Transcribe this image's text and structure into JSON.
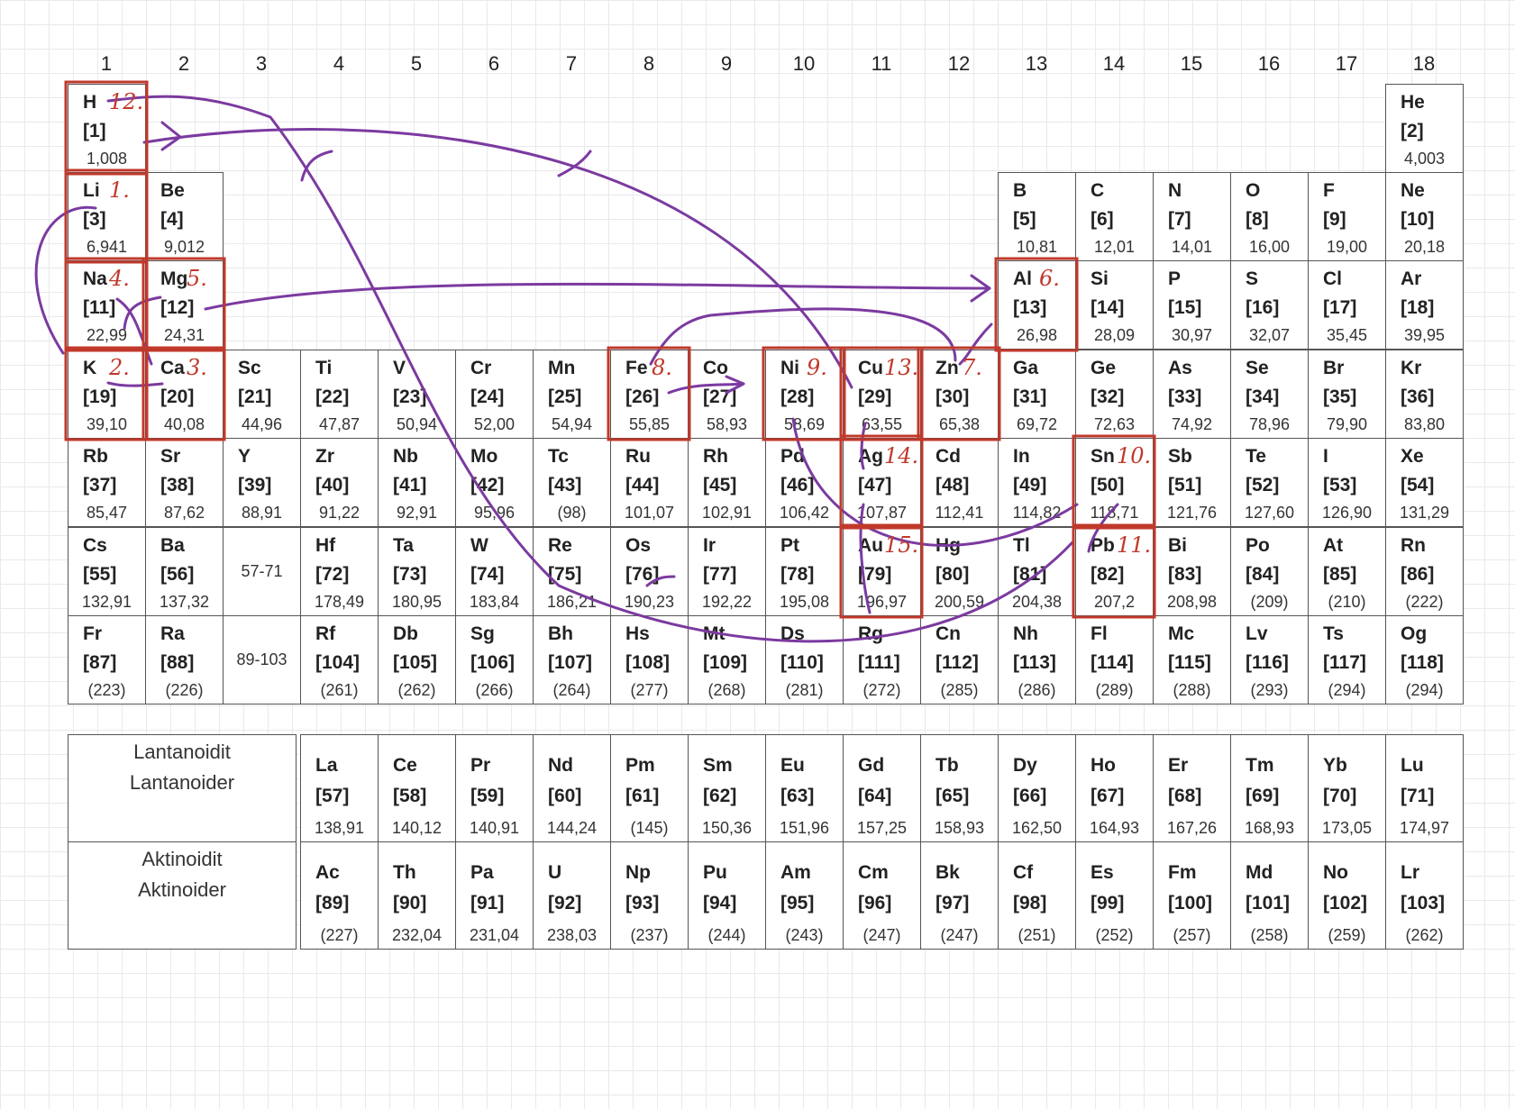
{
  "groups": [
    "1",
    "2",
    "3",
    "4",
    "5",
    "6",
    "7",
    "8",
    "9",
    "10",
    "11",
    "12",
    "13",
    "14",
    "15",
    "16",
    "17",
    "18"
  ],
  "elements": [
    {
      "s": "H",
      "n": "[1]",
      "m": "1,008",
      "p": 1,
      "g": 1
    },
    {
      "s": "He",
      "n": "[2]",
      "m": "4,003",
      "p": 1,
      "g": 18
    },
    {
      "s": "Li",
      "n": "[3]",
      "m": "6,941",
      "p": 2,
      "g": 1
    },
    {
      "s": "Be",
      "n": "[4]",
      "m": "9,012",
      "p": 2,
      "g": 2
    },
    {
      "s": "B",
      "n": "[5]",
      "m": "10,81",
      "p": 2,
      "g": 13
    },
    {
      "s": "C",
      "n": "[6]",
      "m": "12,01",
      "p": 2,
      "g": 14
    },
    {
      "s": "N",
      "n": "[7]",
      "m": "14,01",
      "p": 2,
      "g": 15
    },
    {
      "s": "O",
      "n": "[8]",
      "m": "16,00",
      "p": 2,
      "g": 16
    },
    {
      "s": "F",
      "n": "[9]",
      "m": "19,00",
      "p": 2,
      "g": 17
    },
    {
      "s": "Ne",
      "n": "[10]",
      "m": "20,18",
      "p": 2,
      "g": 18
    },
    {
      "s": "Na",
      "n": "[11]",
      "m": "22,99",
      "p": 3,
      "g": 1
    },
    {
      "s": "Mg",
      "n": "[12]",
      "m": "24,31",
      "p": 3,
      "g": 2
    },
    {
      "s": "Al",
      "n": "[13]",
      "m": "26,98",
      "p": 3,
      "g": 13
    },
    {
      "s": "Si",
      "n": "[14]",
      "m": "28,09",
      "p": 3,
      "g": 14
    },
    {
      "s": "P",
      "n": "[15]",
      "m": "30,97",
      "p": 3,
      "g": 15
    },
    {
      "s": "S",
      "n": "[16]",
      "m": "32,07",
      "p": 3,
      "g": 16
    },
    {
      "s": "Cl",
      "n": "[17]",
      "m": "35,45",
      "p": 3,
      "g": 17
    },
    {
      "s": "Ar",
      "n": "[18]",
      "m": "39,95",
      "p": 3,
      "g": 18
    },
    {
      "s": "K",
      "n": "[19]",
      "m": "39,10",
      "p": 4,
      "g": 1
    },
    {
      "s": "Ca",
      "n": "[20]",
      "m": "40,08",
      "p": 4,
      "g": 2
    },
    {
      "s": "Sc",
      "n": "[21]",
      "m": "44,96",
      "p": 4,
      "g": 3
    },
    {
      "s": "Ti",
      "n": "[22]",
      "m": "47,87",
      "p": 4,
      "g": 4
    },
    {
      "s": "V",
      "n": "[23]",
      "m": "50,94",
      "p": 4,
      "g": 5
    },
    {
      "s": "Cr",
      "n": "[24]",
      "m": "52,00",
      "p": 4,
      "g": 6
    },
    {
      "s": "Mn",
      "n": "[25]",
      "m": "54,94",
      "p": 4,
      "g": 7
    },
    {
      "s": "Fe",
      "n": "[26]",
      "m": "55,85",
      "p": 4,
      "g": 8
    },
    {
      "s": "Co",
      "n": "[27]",
      "m": "58,93",
      "p": 4,
      "g": 9
    },
    {
      "s": "Ni",
      "n": "[28]",
      "m": "58,69",
      "p": 4,
      "g": 10
    },
    {
      "s": "Cu",
      "n": "[29]",
      "m": "63,55",
      "p": 4,
      "g": 11
    },
    {
      "s": "Zn",
      "n": "[30]",
      "m": "65,38",
      "p": 4,
      "g": 12
    },
    {
      "s": "Ga",
      "n": "[31]",
      "m": "69,72",
      "p": 4,
      "g": 13
    },
    {
      "s": "Ge",
      "n": "[32]",
      "m": "72,63",
      "p": 4,
      "g": 14
    },
    {
      "s": "As",
      "n": "[33]",
      "m": "74,92",
      "p": 4,
      "g": 15
    },
    {
      "s": "Se",
      "n": "[34]",
      "m": "78,96",
      "p": 4,
      "g": 16
    },
    {
      "s": "Br",
      "n": "[35]",
      "m": "79,90",
      "p": 4,
      "g": 17
    },
    {
      "s": "Kr",
      "n": "[36]",
      "m": "83,80",
      "p": 4,
      "g": 18
    },
    {
      "s": "Rb",
      "n": "[37]",
      "m": "85,47",
      "p": 5,
      "g": 1
    },
    {
      "s": "Sr",
      "n": "[38]",
      "m": "87,62",
      "p": 5,
      "g": 2
    },
    {
      "s": "Y",
      "n": "[39]",
      "m": "88,91",
      "p": 5,
      "g": 3
    },
    {
      "s": "Zr",
      "n": "[40]",
      "m": "91,22",
      "p": 5,
      "g": 4
    },
    {
      "s": "Nb",
      "n": "[41]",
      "m": "92,91",
      "p": 5,
      "g": 5
    },
    {
      "s": "Mo",
      "n": "[42]",
      "m": "95,96",
      "p": 5,
      "g": 6
    },
    {
      "s": "Tc",
      "n": "[43]",
      "m": "(98)",
      "p": 5,
      "g": 7
    },
    {
      "s": "Ru",
      "n": "[44]",
      "m": "101,07",
      "p": 5,
      "g": 8
    },
    {
      "s": "Rh",
      "n": "[45]",
      "m": "102,91",
      "p": 5,
      "g": 9
    },
    {
      "s": "Pd",
      "n": "[46]",
      "m": "106,42",
      "p": 5,
      "g": 10
    },
    {
      "s": "Ag",
      "n": "[47]",
      "m": "107,87",
      "p": 5,
      "g": 11
    },
    {
      "s": "Cd",
      "n": "[48]",
      "m": "112,41",
      "p": 5,
      "g": 12
    },
    {
      "s": "In",
      "n": "[49]",
      "m": "114,82",
      "p": 5,
      "g": 13
    },
    {
      "s": "Sn",
      "n": "[50]",
      "m": "118,71",
      "p": 5,
      "g": 14
    },
    {
      "s": "Sb",
      "n": "[51]",
      "m": "121,76",
      "p": 5,
      "g": 15
    },
    {
      "s": "Te",
      "n": "[52]",
      "m": "127,60",
      "p": 5,
      "g": 16
    },
    {
      "s": "I",
      "n": "[53]",
      "m": "126,90",
      "p": 5,
      "g": 17
    },
    {
      "s": "Xe",
      "n": "[54]",
      "m": "131,29",
      "p": 5,
      "g": 18
    },
    {
      "s": "Cs",
      "n": "[55]",
      "m": "132,91",
      "p": 6,
      "g": 1
    },
    {
      "s": "Ba",
      "n": "[56]",
      "m": "137,32",
      "p": 6,
      "g": 2
    },
    {
      "s": "Hf",
      "n": "[72]",
      "m": "178,49",
      "p": 6,
      "g": 4
    },
    {
      "s": "Ta",
      "n": "[73]",
      "m": "180,95",
      "p": 6,
      "g": 5
    },
    {
      "s": "W",
      "n": "[74]",
      "m": "183,84",
      "p": 6,
      "g": 6
    },
    {
      "s": "Re",
      "n": "[75]",
      "m": "186,21",
      "p": 6,
      "g": 7
    },
    {
      "s": "Os",
      "n": "[76]",
      "m": "190,23",
      "p": 6,
      "g": 8
    },
    {
      "s": "Ir",
      "n": "[77]",
      "m": "192,22",
      "p": 6,
      "g": 9
    },
    {
      "s": "Pt",
      "n": "[78]",
      "m": "195,08",
      "p": 6,
      "g": 10
    },
    {
      "s": "Au",
      "n": "[79]",
      "m": "196,97",
      "p": 6,
      "g": 11
    },
    {
      "s": "Hg",
      "n": "[80]",
      "m": "200,59",
      "p": 6,
      "g": 12
    },
    {
      "s": "Tl",
      "n": "[81]",
      "m": "204,38",
      "p": 6,
      "g": 13
    },
    {
      "s": "Pb",
      "n": "[82]",
      "m": "207,2",
      "p": 6,
      "g": 14
    },
    {
      "s": "Bi",
      "n": "[83]",
      "m": "208,98",
      "p": 6,
      "g": 15
    },
    {
      "s": "Po",
      "n": "[84]",
      "m": "(209)",
      "p": 6,
      "g": 16
    },
    {
      "s": "At",
      "n": "[85]",
      "m": "(210)",
      "p": 6,
      "g": 17
    },
    {
      "s": "Rn",
      "n": "[86]",
      "m": "(222)",
      "p": 6,
      "g": 18
    },
    {
      "s": "Fr",
      "n": "[87]",
      "m": "(223)",
      "p": 7,
      "g": 1
    },
    {
      "s": "Ra",
      "n": "[88]",
      "m": "(226)",
      "p": 7,
      "g": 2
    },
    {
      "s": "Rf",
      "n": "[104]",
      "m": "(261)",
      "p": 7,
      "g": 4
    },
    {
      "s": "Db",
      "n": "[105]",
      "m": "(262)",
      "p": 7,
      "g": 5
    },
    {
      "s": "Sg",
      "n": "[106]",
      "m": "(266)",
      "p": 7,
      "g": 6
    },
    {
      "s": "Bh",
      "n": "[107]",
      "m": "(264)",
      "p": 7,
      "g": 7
    },
    {
      "s": "Hs",
      "n": "[108]",
      "m": "(277)",
      "p": 7,
      "g": 8
    },
    {
      "s": "Mt",
      "n": "[109]",
      "m": "(268)",
      "p": 7,
      "g": 9
    },
    {
      "s": "Ds",
      "n": "[110]",
      "m": "(281)",
      "p": 7,
      "g": 10
    },
    {
      "s": "Rg",
      "n": "[111]",
      "m": "(272)",
      "p": 7,
      "g": 11
    },
    {
      "s": "Cn",
      "n": "[112]",
      "m": "(285)",
      "p": 7,
      "g": 12
    },
    {
      "s": "Nh",
      "n": "[113]",
      "m": "(286)",
      "p": 7,
      "g": 13
    },
    {
      "s": "Fl",
      "n": "[114]",
      "m": "(289)",
      "p": 7,
      "g": 14
    },
    {
      "s": "Mc",
      "n": "[115]",
      "m": "(288)",
      "p": 7,
      "g": 15
    },
    {
      "s": "Lv",
      "n": "[116]",
      "m": "(293)",
      "p": 7,
      "g": 16
    },
    {
      "s": "Ts",
      "n": "[117]",
      "m": "(294)",
      "p": 7,
      "g": 17
    },
    {
      "s": "Og",
      "n": "[118]",
      "m": "(294)",
      "p": 7,
      "g": 18
    }
  ],
  "ranges": [
    {
      "text": "57-71",
      "p": 6,
      "g": 3
    },
    {
      "text": "89-103",
      "p": 7,
      "g": 3
    }
  ],
  "series": [
    {
      "label_fi": "Lantanoidit",
      "label_sv": "Lantanoider",
      "elements": [
        {
          "s": "La",
          "n": "[57]",
          "m": "138,91"
        },
        {
          "s": "Ce",
          "n": "[58]",
          "m": "140,12"
        },
        {
          "s": "Pr",
          "n": "[59]",
          "m": "140,91"
        },
        {
          "s": "Nd",
          "n": "[60]",
          "m": "144,24"
        },
        {
          "s": "Pm",
          "n": "[61]",
          "m": "(145)"
        },
        {
          "s": "Sm",
          "n": "[62]",
          "m": "150,36"
        },
        {
          "s": "Eu",
          "n": "[63]",
          "m": "151,96"
        },
        {
          "s": "Gd",
          "n": "[64]",
          "m": "157,25"
        },
        {
          "s": "Tb",
          "n": "[65]",
          "m": "158,93"
        },
        {
          "s": "Dy",
          "n": "[66]",
          "m": "162,50"
        },
        {
          "s": "Ho",
          "n": "[67]",
          "m": "164,93"
        },
        {
          "s": "Er",
          "n": "[68]",
          "m": "167,26"
        },
        {
          "s": "Tm",
          "n": "[69]",
          "m": "168,93"
        },
        {
          "s": "Yb",
          "n": "[70]",
          "m": "173,05"
        },
        {
          "s": "Lu",
          "n": "[71]",
          "m": "174,97"
        }
      ]
    },
    {
      "label_fi": "Aktinoidit",
      "label_sv": "Aktinoider",
      "elements": [
        {
          "s": "Ac",
          "n": "[89]",
          "m": "(227)"
        },
        {
          "s": "Th",
          "n": "[90]",
          "m": "232,04"
        },
        {
          "s": "Pa",
          "n": "[91]",
          "m": "231,04"
        },
        {
          "s": "U",
          "n": "[92]",
          "m": "238,03"
        },
        {
          "s": "Np",
          "n": "[93]",
          "m": "(237)"
        },
        {
          "s": "Pu",
          "n": "[94]",
          "m": "(244)"
        },
        {
          "s": "Am",
          "n": "[95]",
          "m": "(243)"
        },
        {
          "s": "Cm",
          "n": "[96]",
          "m": "(247)"
        },
        {
          "s": "Bk",
          "n": "[97]",
          "m": "(247)"
        },
        {
          "s": "Cf",
          "n": "[98]",
          "m": "(251)"
        },
        {
          "s": "Es",
          "n": "[99]",
          "m": "(252)"
        },
        {
          "s": "Fm",
          "n": "[100]",
          "m": "(257)"
        },
        {
          "s": "Md",
          "n": "[101]",
          "m": "(258)"
        },
        {
          "s": "No",
          "n": "[102]",
          "m": "(259)"
        },
        {
          "s": "Lr",
          "n": "[103]",
          "m": "(262)"
        }
      ]
    }
  ],
  "annotations": {
    "highlight_color": "#c0392b",
    "arrow_color": "#7b3aa0",
    "marks": [
      {
        "element": "Li",
        "label": "1."
      },
      {
        "element": "K",
        "label": "2."
      },
      {
        "element": "Ca",
        "label": "3."
      },
      {
        "element": "Na",
        "label": "4."
      },
      {
        "element": "Mg",
        "label": "5."
      },
      {
        "element": "Al",
        "label": "6."
      },
      {
        "element": "Zn",
        "label": "7."
      },
      {
        "element": "Fe",
        "label": "8."
      },
      {
        "element": "Ni",
        "label": "9."
      },
      {
        "element": "Sn",
        "label": "10."
      },
      {
        "element": "Pb",
        "label": "11."
      },
      {
        "element": "H",
        "label": "12."
      },
      {
        "element": "Cu",
        "label": "13."
      },
      {
        "element": "Ag",
        "label": "14."
      },
      {
        "element": "Au",
        "label": "15."
      }
    ]
  }
}
